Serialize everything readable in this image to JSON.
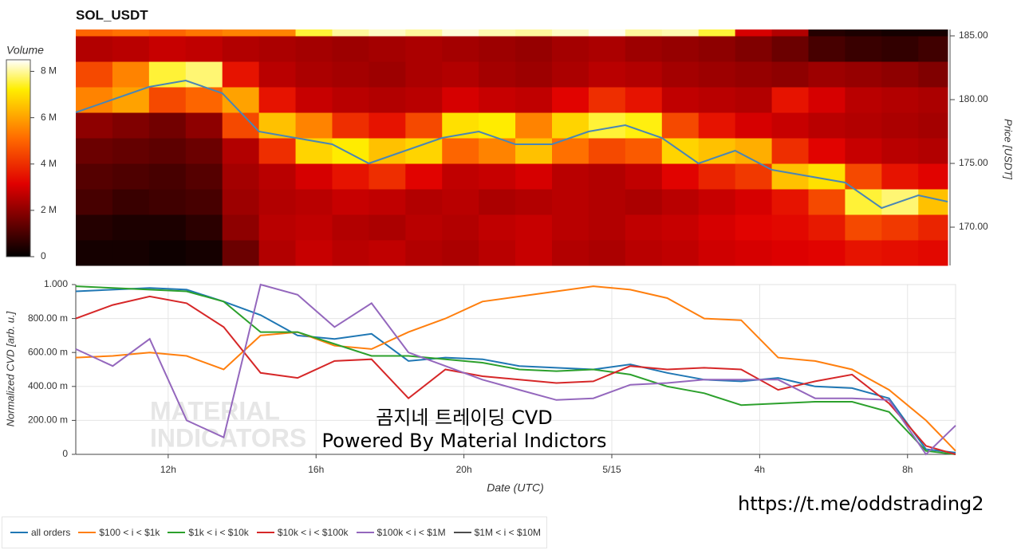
{
  "chart_data": [
    {
      "type": "heatmap",
      "title": "SOL_USDT",
      "colorbar_label": "Volume",
      "colormap": "hot",
      "clim": [
        0,
        8.5
      ],
      "cticks": [
        0,
        {
          "value": 2,
          "label": "2 M"
        },
        {
          "value": 4,
          "label": "4 M"
        },
        {
          "value": 6,
          "label": "6 M"
        },
        {
          "value": 8,
          "label": "8 M"
        }
      ],
      "xlim": [
        9.5,
        33.3
      ],
      "ylim": [
        167,
        185.5
      ],
      "y_label": "Price [USDT]",
      "yticks": [
        {
          "value": 170,
          "label": "170.00"
        },
        {
          "value": 175,
          "label": "175.00"
        },
        {
          "value": 180,
          "label": "180.00"
        },
        {
          "value": 185,
          "label": "185.00"
        }
      ],
      "x_bins": [
        9.5,
        10.5,
        11.5,
        12.5,
        13.5,
        14.5,
        15.5,
        16.5,
        17.5,
        18.5,
        19.5,
        20.5,
        21.5,
        22.5,
        23.5,
        24.5,
        25.5,
        26.5,
        27.5,
        28.5,
        29.5,
        30.5,
        31.5,
        32.5,
        33.3
      ],
      "y_bins": [
        167,
        169,
        171,
        173,
        175,
        177,
        179,
        181,
        183,
        185,
        185.5
      ],
      "values": [
        [
          0.3,
          0.3,
          0.2,
          0.3,
          1.5,
          2.5,
          2.8,
          2.6,
          2.7,
          2.5,
          2.4,
          2.6,
          2.8,
          2.5,
          2.4,
          2.6,
          2.7,
          2.9,
          3.0,
          3.1,
          3.2,
          3.5,
          3.4,
          3.3
        ],
        [
          0.5,
          0.4,
          0.4,
          0.6,
          2.0,
          2.6,
          2.7,
          2.5,
          2.4,
          2.6,
          2.5,
          2.7,
          2.8,
          2.6,
          2.5,
          2.7,
          2.8,
          3.0,
          3.2,
          3.3,
          3.6,
          4.5,
          4.2,
          3.8
        ],
        [
          1.0,
          0.8,
          0.9,
          1.0,
          2.2,
          2.5,
          2.6,
          2.8,
          2.7,
          2.5,
          2.6,
          2.4,
          2.5,
          2.6,
          2.5,
          2.4,
          2.6,
          2.8,
          3.0,
          3.5,
          4.5,
          7.5,
          7.8,
          6.5
        ],
        [
          1.2,
          1.1,
          1.0,
          1.2,
          2.3,
          2.6,
          3.0,
          3.5,
          4.0,
          3.2,
          2.7,
          2.8,
          3.0,
          2.6,
          2.5,
          2.7,
          3.2,
          3.8,
          4.2,
          6.5,
          7.0,
          4.5,
          3.5,
          3.2
        ],
        [
          1.5,
          1.4,
          1.3,
          1.5,
          2.5,
          4.0,
          6.8,
          7.2,
          6.5,
          6.8,
          5.0,
          5.5,
          6.5,
          5.2,
          4.5,
          4.8,
          6.8,
          6.5,
          6.2,
          4.0,
          3.2,
          2.8,
          2.6,
          2.5
        ],
        [
          2.0,
          1.8,
          1.6,
          2.0,
          4.5,
          6.5,
          5.5,
          4.0,
          3.5,
          4.5,
          7.0,
          7.2,
          5.5,
          6.8,
          7.5,
          7.3,
          4.5,
          3.5,
          3.0,
          2.8,
          2.6,
          2.5,
          2.4,
          2.3
        ],
        [
          5.5,
          6.0,
          4.5,
          5.0,
          6.0,
          3.5,
          2.8,
          2.6,
          2.5,
          2.6,
          3.0,
          2.8,
          2.7,
          3.2,
          4.0,
          3.5,
          2.7,
          2.6,
          2.5,
          3.5,
          3.0,
          2.6,
          2.5,
          2.4
        ],
        [
          4.5,
          5.5,
          7.5,
          7.8,
          3.5,
          2.6,
          2.4,
          2.3,
          2.2,
          2.4,
          2.5,
          2.3,
          2.2,
          2.4,
          2.6,
          2.5,
          2.3,
          2.2,
          2.1,
          2.0,
          2.2,
          2.1,
          2.0,
          1.8
        ],
        [
          2.5,
          2.6,
          2.8,
          2.7,
          2.5,
          2.4,
          2.3,
          2.2,
          2.3,
          2.4,
          2.3,
          2.2,
          2.1,
          2.3,
          2.4,
          2.2,
          2.1,
          2.0,
          1.8,
          1.5,
          1.0,
          0.8,
          0.7,
          0.9
        ],
        [
          5.0,
          5.2,
          5.0,
          5.3,
          5.5,
          5.5,
          7.5,
          8.0,
          8.2,
          8.0,
          8.3,
          8.1,
          8.0,
          8.2,
          8.4,
          8.0,
          8.1,
          7.5,
          3.0,
          2.5,
          0.5,
          0.4,
          0.3,
          0.3
        ]
      ],
      "line": {
        "color": "#4a86b4",
        "x": [
          9.5,
          10.5,
          11.5,
          12.5,
          13.5,
          14.5,
          15.5,
          16.5,
          17.5,
          18.5,
          19.5,
          20.5,
          21.5,
          22.5,
          23.5,
          24.5,
          25.5,
          26.5,
          27.5,
          28.5,
          29.5,
          30.5,
          31.5,
          32.5,
          33.3
        ],
        "values": [
          179,
          180,
          181,
          181.5,
          180.5,
          177.5,
          177,
          176.5,
          175,
          176,
          177,
          177.5,
          176.5,
          176.5,
          177.5,
          178,
          177,
          175,
          176,
          174.5,
          174,
          173.5,
          171.5,
          172.5,
          172
        ]
      }
    },
    {
      "type": "line",
      "y_label": "Normalized CVD [arb. u.]",
      "x_label": "Date (UTC)",
      "grid": true,
      "legend": "bottom",
      "xlim": [
        9.5,
        33.3
      ],
      "ylim": [
        0,
        1
      ],
      "xticks": [
        {
          "value": 12,
          "label": "12h"
        },
        {
          "value": 16,
          "label": "16h"
        },
        {
          "value": 20,
          "label": "20h"
        },
        {
          "value": 24,
          "label": "5/15"
        },
        {
          "value": 28,
          "label": "4h"
        },
        {
          "value": 32,
          "label": "8h"
        }
      ],
      "yticks": [
        0,
        {
          "value": 0.2,
          "label": "200.00 m"
        },
        {
          "value": 0.4,
          "label": "400.00 m"
        },
        {
          "value": 0.6,
          "label": "600.00 m"
        },
        {
          "value": 0.8,
          "label": "800.00 m"
        },
        {
          "value": 1,
          "label": "1.000"
        }
      ],
      "x": [
        9.5,
        10.5,
        11.5,
        12.5,
        13.5,
        14.5,
        15.5,
        16.5,
        17.5,
        18.5,
        19.5,
        20.5,
        21.5,
        22.5,
        23.5,
        24.5,
        25.5,
        26.5,
        27.5,
        28.5,
        29.5,
        30.5,
        31.5,
        32.5,
        33.3
      ],
      "series": [
        {
          "name": "all orders",
          "color": "#1f77b4",
          "values": [
            0.96,
            0.97,
            0.98,
            0.97,
            0.9,
            0.82,
            0.7,
            0.68,
            0.71,
            0.55,
            0.57,
            0.56,
            0.52,
            0.51,
            0.5,
            0.53,
            0.48,
            0.44,
            0.43,
            0.45,
            0.4,
            0.39,
            0.33,
            0.03,
            0.01
          ]
        },
        {
          "name": "$100 < i < $1k",
          "color": "#ff7f0e",
          "values": [
            0.57,
            0.58,
            0.6,
            0.58,
            0.5,
            0.7,
            0.72,
            0.64,
            0.62,
            0.72,
            0.8,
            0.9,
            0.93,
            0.96,
            0.99,
            0.97,
            0.92,
            0.8,
            0.79,
            0.57,
            0.55,
            0.5,
            0.38,
            0.2,
            0.02
          ]
        },
        {
          "name": "$1k < i < $10k",
          "color": "#2ca02c",
          "values": [
            0.99,
            0.98,
            0.97,
            0.96,
            0.9,
            0.72,
            0.72,
            0.65,
            0.58,
            0.58,
            0.56,
            0.54,
            0.5,
            0.49,
            0.5,
            0.47,
            0.4,
            0.36,
            0.29,
            0.3,
            0.31,
            0.31,
            0.25,
            0.02,
            0.0
          ]
        },
        {
          "name": "$10k < i < $100k",
          "color": "#d62728",
          "values": [
            0.8,
            0.88,
            0.93,
            0.89,
            0.75,
            0.48,
            0.45,
            0.55,
            0.56,
            0.33,
            0.5,
            0.46,
            0.44,
            0.42,
            0.43,
            0.52,
            0.5,
            0.51,
            0.5,
            0.38,
            0.43,
            0.47,
            0.3,
            0.05,
            0.0
          ]
        },
        {
          "name": "$100k < i < $1M",
          "color": "#9467bd",
          "values": [
            0.62,
            0.52,
            0.68,
            0.2,
            0.1,
            1.0,
            0.94,
            0.75,
            0.89,
            0.6,
            0.52,
            0.44,
            0.38,
            0.32,
            0.33,
            0.41,
            0.42,
            0.44,
            0.44,
            0.44,
            0.33,
            0.33,
            0.32,
            0.0,
            0.17
          ]
        },
        {
          "name": "$1M < i < $10M",
          "color": "#4d4d4d",
          "values": [
            null,
            null,
            null,
            null,
            null,
            null,
            null,
            null,
            null,
            null,
            null,
            null,
            null,
            null,
            null,
            null,
            null,
            null,
            null,
            null,
            null,
            null,
            null,
            null,
            null
          ]
        }
      ],
      "watermark": [
        "MATERIAL",
        "INDICATORS"
      ],
      "annotations": [
        "곰지네 트레이딩 CVD",
        "Powered By Material Indictors",
        "https://t.me/oddstrading2"
      ]
    }
  ]
}
